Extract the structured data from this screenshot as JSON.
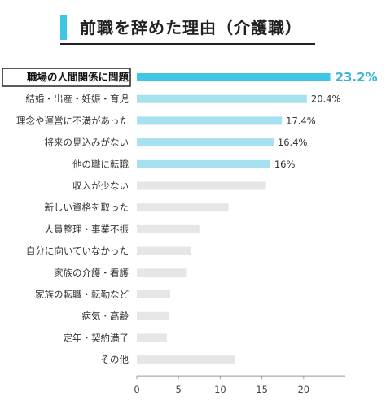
{
  "header": {
    "title": "前職を辞めた理由（介護職）"
  },
  "colors": {
    "highlight": "#3fc6e6",
    "accent": "#a6e1ef",
    "muted": "#e6e6e6",
    "highlight_text": "#3ab5d9"
  },
  "chart_data": {
    "type": "bar",
    "orientation": "horizontal",
    "title": "前職を辞めた理由（介護職）",
    "categories": [
      "職場の人間関係に問題",
      "結婚・出産・妊娠・育児",
      "理念や運営に不満があった",
      "将来の見込みがない",
      "他の職に転職",
      "収入が少ない",
      "新しい資格を取った",
      "人員整理・事業不振",
      "自分に向いていなかった",
      "家族の介護・看護",
      "家族の転職・転勤など",
      "病気・高齢",
      "定年・契約満了",
      "その他"
    ],
    "values": [
      23.2,
      20.4,
      17.4,
      16.4,
      16,
      15.5,
      11,
      7.5,
      6.5,
      6,
      4,
      3.8,
      3.6,
      11.8
    ],
    "value_labels": [
      "23.2%",
      "20.4%",
      "17.4%",
      "16.4%",
      "16%",
      "",
      "",
      "",
      "",
      "",
      "",
      "",
      "",
      ""
    ],
    "xlim": [
      0,
      25
    ],
    "xticks": [
      "0",
      "5",
      "10",
      "15",
      "20"
    ],
    "grid": false,
    "legend": "none"
  }
}
